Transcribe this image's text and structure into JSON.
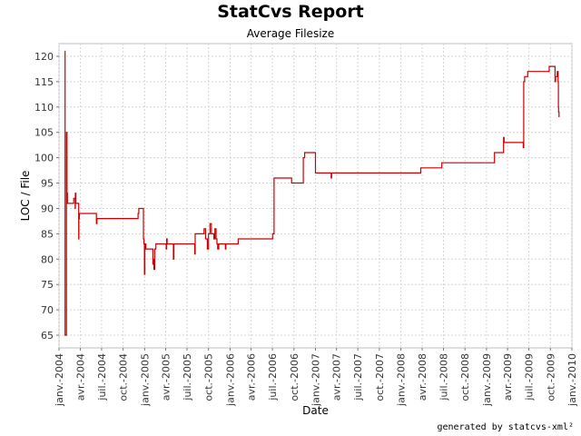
{
  "chart_data": {
    "type": "line",
    "title": "StatCvs Report",
    "subtitle": "Average Filesize",
    "xlabel": "Date",
    "ylabel": "LOC / File",
    "ylim": [
      62.5,
      122.5
    ],
    "xlim": [
      "2004-01-01",
      "2010-01-01"
    ],
    "grid": true,
    "yticks": [
      65,
      70,
      75,
      80,
      85,
      90,
      95,
      100,
      105,
      110,
      115,
      120
    ],
    "xticks": [
      {
        "date": "2004-01-01",
        "label": "janv.-2004"
      },
      {
        "date": "2004-04-01",
        "label": "avr.-2004"
      },
      {
        "date": "2004-07-01",
        "label": "juil.-2004"
      },
      {
        "date": "2004-10-01",
        "label": "oct.-2004"
      },
      {
        "date": "2005-01-01",
        "label": "janv.-2005"
      },
      {
        "date": "2005-04-01",
        "label": "avr.-2005"
      },
      {
        "date": "2005-07-01",
        "label": "juil.-2005"
      },
      {
        "date": "2005-10-01",
        "label": "oct.-2005"
      },
      {
        "date": "2006-01-01",
        "label": "janv.-2006"
      },
      {
        "date": "2006-04-01",
        "label": "avr.-2006"
      },
      {
        "date": "2006-07-01",
        "label": "juil.-2006"
      },
      {
        "date": "2006-10-01",
        "label": "oct.-2006"
      },
      {
        "date": "2007-01-01",
        "label": "janv.-2007"
      },
      {
        "date": "2007-04-01",
        "label": "avr.-2007"
      },
      {
        "date": "2007-07-01",
        "label": "juil.-2007"
      },
      {
        "date": "2007-10-01",
        "label": "oct.-2007"
      },
      {
        "date": "2008-01-01",
        "label": "janv.-2008"
      },
      {
        "date": "2008-04-01",
        "label": "avr.-2008"
      },
      {
        "date": "2008-07-01",
        "label": "juil.-2008"
      },
      {
        "date": "2008-10-01",
        "label": "oct.-2008"
      },
      {
        "date": "2009-01-01",
        "label": "janv.-2009"
      },
      {
        "date": "2009-04-01",
        "label": "avr.-2009"
      },
      {
        "date": "2009-07-01",
        "label": "juil.-2009"
      },
      {
        "date": "2009-10-01",
        "label": "oct.-2009"
      },
      {
        "date": "2010-01-01",
        "label": "janv.-2010"
      }
    ],
    "series": [
      {
        "color": "#cc0000",
        "step": true,
        "points": [
          [
            "2004-01-26",
            121
          ],
          [
            "2004-01-27",
            65
          ],
          [
            "2004-02-01",
            65
          ],
          [
            "2004-02-02",
            105
          ],
          [
            "2004-02-04",
            93
          ],
          [
            "2004-02-06",
            91
          ],
          [
            "2004-03-03",
            91
          ],
          [
            "2004-03-04",
            92
          ],
          [
            "2004-03-10",
            90
          ],
          [
            "2004-03-11",
            93
          ],
          [
            "2004-03-13",
            91
          ],
          [
            "2004-03-24",
            91
          ],
          [
            "2004-03-25",
            84
          ],
          [
            "2004-03-26",
            88
          ],
          [
            "2004-03-28",
            89
          ],
          [
            "2004-06-08",
            89
          ],
          [
            "2004-06-09",
            87
          ],
          [
            "2004-06-11",
            88
          ],
          [
            "2004-12-03",
            88
          ],
          [
            "2004-12-04",
            89
          ],
          [
            "2004-12-07",
            90
          ],
          [
            "2004-12-26",
            90
          ],
          [
            "2004-12-27",
            84
          ],
          [
            "2004-12-29",
            83
          ],
          [
            "2004-12-31",
            77
          ],
          [
            "2005-01-02",
            83
          ],
          [
            "2005-01-06",
            82
          ],
          [
            "2005-02-01",
            82
          ],
          [
            "2005-02-05",
            79
          ],
          [
            "2005-02-08",
            80
          ],
          [
            "2005-02-10",
            78
          ],
          [
            "2005-02-13",
            82
          ],
          [
            "2005-02-18",
            83
          ],
          [
            "2005-04-02",
            83
          ],
          [
            "2005-04-03",
            82
          ],
          [
            "2005-04-05",
            84
          ],
          [
            "2005-04-07",
            83
          ],
          [
            "2005-05-03",
            83
          ],
          [
            "2005-05-04",
            80
          ],
          [
            "2005-05-06",
            83
          ],
          [
            "2005-08-02",
            83
          ],
          [
            "2005-08-03",
            81
          ],
          [
            "2005-08-05",
            85
          ],
          [
            "2005-09-10",
            85
          ],
          [
            "2005-09-12",
            86
          ],
          [
            "2005-09-18",
            84
          ],
          [
            "2005-09-26",
            82
          ],
          [
            "2005-10-01",
            85
          ],
          [
            "2005-10-07",
            87
          ],
          [
            "2005-10-13",
            85
          ],
          [
            "2005-10-24",
            84
          ],
          [
            "2005-10-28",
            86
          ],
          [
            "2005-11-02",
            84
          ],
          [
            "2005-11-06",
            83
          ],
          [
            "2005-11-09",
            82
          ],
          [
            "2005-11-14",
            83
          ],
          [
            "2005-12-11",
            83
          ],
          [
            "2005-12-12",
            82
          ],
          [
            "2005-12-14",
            83
          ],
          [
            "2006-02-01",
            83
          ],
          [
            "2006-02-05",
            84
          ],
          [
            "2006-06-28",
            84
          ],
          [
            "2006-07-02",
            85
          ],
          [
            "2006-07-08",
            96
          ],
          [
            "2006-09-19",
            96
          ],
          [
            "2006-09-21",
            95
          ],
          [
            "2006-11-08",
            95
          ],
          [
            "2006-11-10",
            100
          ],
          [
            "2006-11-16",
            101
          ],
          [
            "2006-12-29",
            101
          ],
          [
            "2007-01-01",
            97
          ],
          [
            "2007-03-08",
            97
          ],
          [
            "2007-03-09",
            96
          ],
          [
            "2007-03-11",
            97
          ],
          [
            "2008-03-24",
            97
          ],
          [
            "2008-03-26",
            98
          ],
          [
            "2008-06-22",
            98
          ],
          [
            "2008-06-24",
            99
          ],
          [
            "2009-02-02",
            99
          ],
          [
            "2009-02-04",
            101
          ],
          [
            "2009-03-13",
            101
          ],
          [
            "2009-03-15",
            104
          ],
          [
            "2009-03-17",
            103
          ],
          [
            "2009-06-05",
            103
          ],
          [
            "2009-06-07",
            102
          ],
          [
            "2009-06-09",
            115
          ],
          [
            "2009-06-13",
            116
          ],
          [
            "2009-06-24",
            116
          ],
          [
            "2009-06-26",
            117
          ],
          [
            "2009-09-24",
            117
          ],
          [
            "2009-09-26",
            118
          ],
          [
            "2009-10-19",
            118
          ],
          [
            "2009-10-21",
            115
          ],
          [
            "2009-10-23",
            116
          ],
          [
            "2009-10-28",
            116
          ],
          [
            "2009-10-30",
            117
          ],
          [
            "2009-11-03",
            115
          ],
          [
            "2009-11-04",
            110
          ],
          [
            "2009-11-05",
            109
          ],
          [
            "2009-11-07",
            108
          ]
        ]
      }
    ]
  },
  "footer": "generated by statcvs-xml²"
}
